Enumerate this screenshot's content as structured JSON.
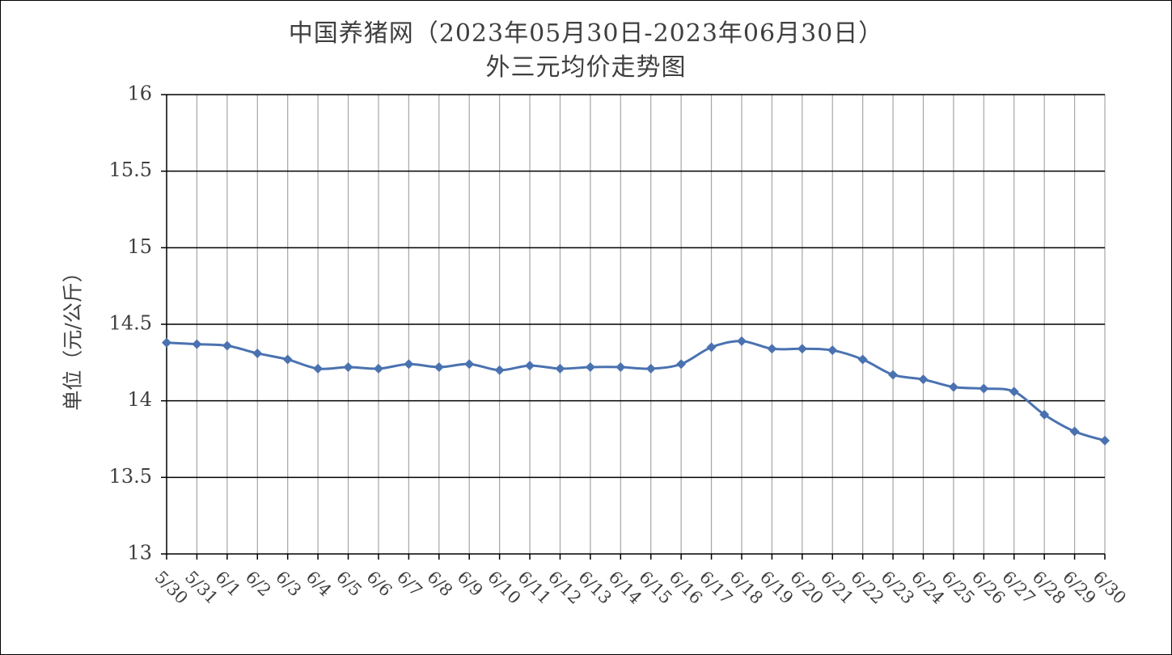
{
  "chart_data": {
    "type": "line",
    "title": "中国养猪网（2023年05月30日-2023年06月30日）",
    "subtitle": "外三元均价走势图",
    "xlabel": "",
    "ylabel": "单位（元/公斤）",
    "ylim": [
      13,
      16
    ],
    "ytick_step": 0.5,
    "yticks": [
      "13",
      "13.5",
      "14",
      "14.5",
      "15",
      "15.5",
      "16"
    ],
    "grid": true,
    "legend": "none",
    "categories": [
      "5/30",
      "5/31",
      "6/1",
      "6/2",
      "6/3",
      "6/4",
      "6/5",
      "6/6",
      "6/7",
      "6/8",
      "6/9",
      "6/10",
      "6/11",
      "6/12",
      "6/13",
      "6/14",
      "6/15",
      "6/16",
      "6/17",
      "6/18",
      "6/19",
      "6/20",
      "6/21",
      "6/22",
      "6/23",
      "6/24",
      "6/25",
      "6/26",
      "6/27",
      "6/28",
      "6/29",
      "6/30"
    ],
    "series": [
      {
        "name": "",
        "color": "#4a72b0",
        "values": [
          14.38,
          14.37,
          14.36,
          14.31,
          14.27,
          14.21,
          14.22,
          14.21,
          14.24,
          14.22,
          14.24,
          14.2,
          14.23,
          14.21,
          14.22,
          14.22,
          14.21,
          14.24,
          14.35,
          14.39,
          14.34,
          14.34,
          14.33,
          14.27,
          14.17,
          14.14,
          14.09,
          14.08,
          14.06,
          13.91,
          13.8,
          13.74
        ]
      }
    ]
  }
}
